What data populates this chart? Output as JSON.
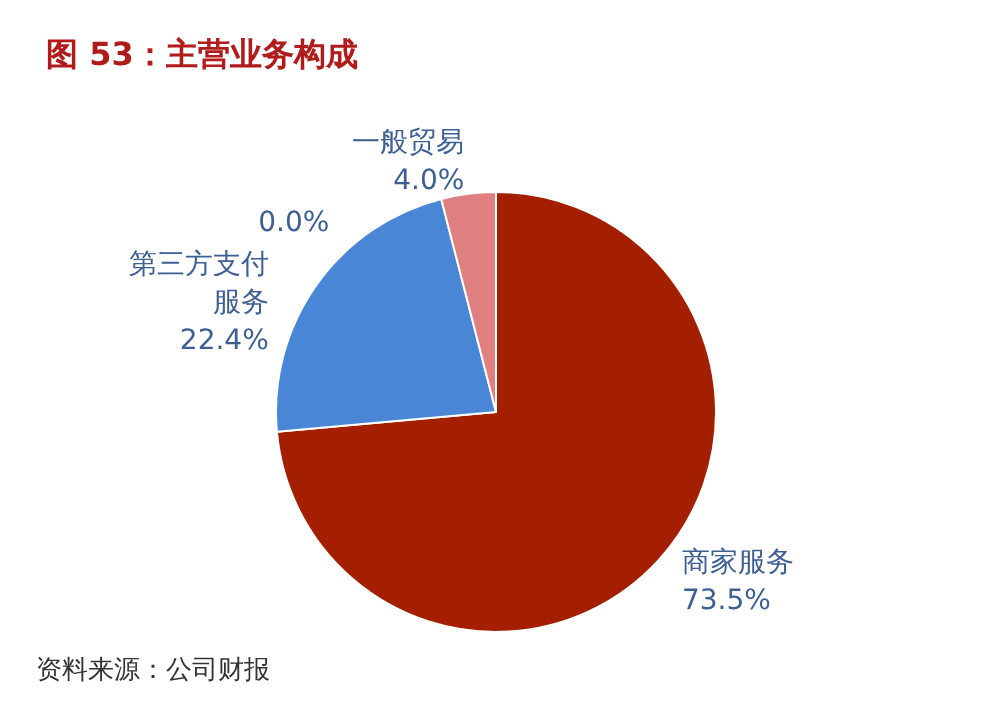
{
  "chart_data": {
    "type": "pie",
    "title": "图 53：主营业务构成",
    "categories": [
      "商家服务",
      "第三方支付服务",
      "一般贸易",
      null
    ],
    "values": [
      73.5,
      22.4,
      4.0,
      0.0
    ],
    "value_labels": [
      "73.5%",
      "22.4%",
      "4.0%",
      "0.0%"
    ],
    "colors": [
      "#a31f00",
      "#4a86d6",
      "#e07f7f",
      "#b0b0b0"
    ],
    "legend": false,
    "annotations": [
      "资料来源：公司财报"
    ]
  }
}
